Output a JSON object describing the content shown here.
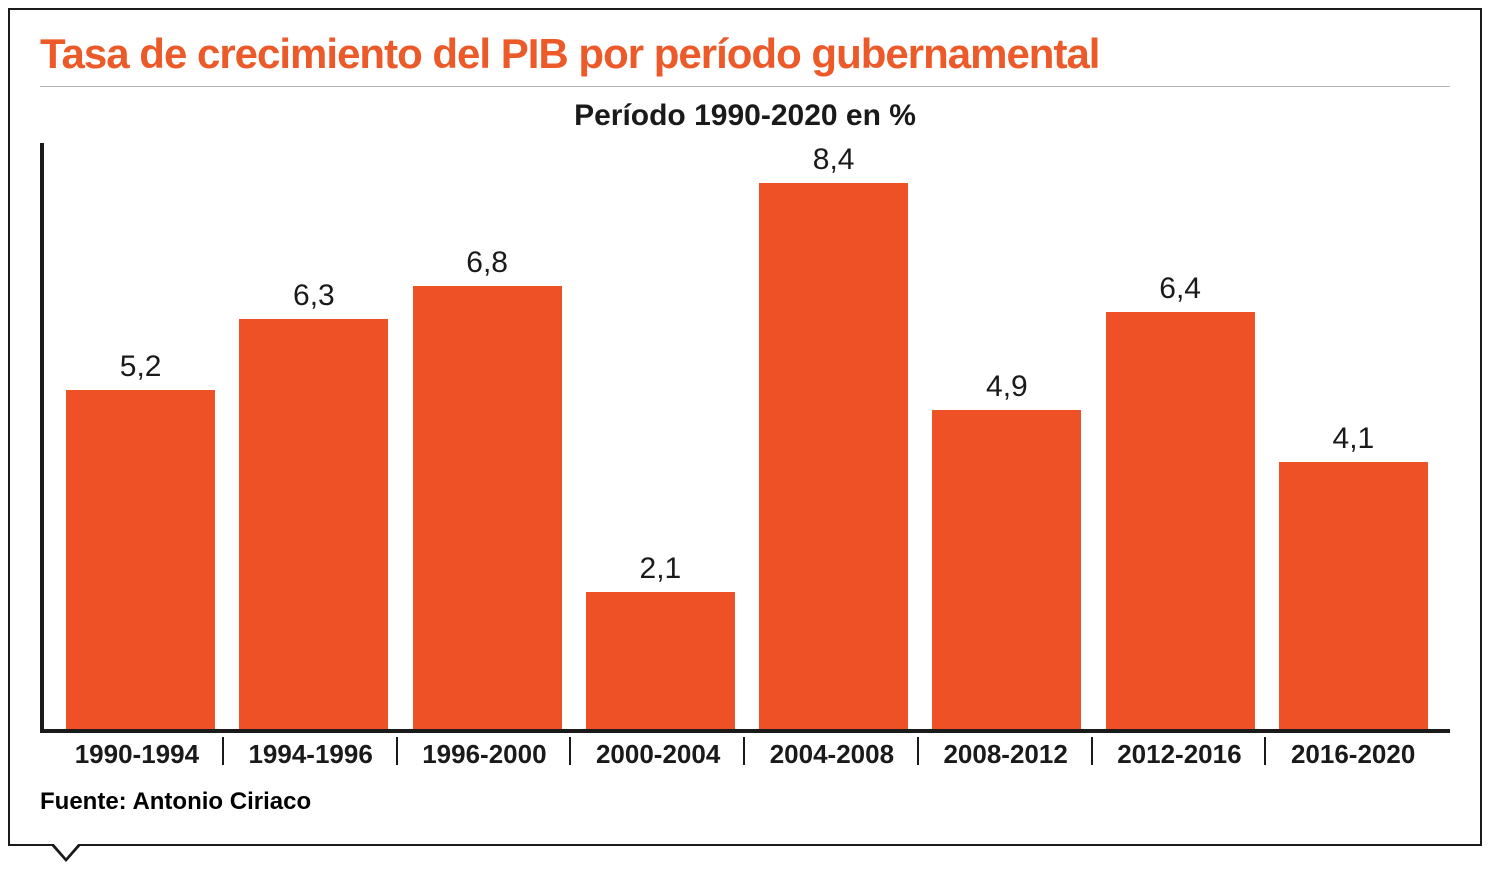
{
  "chart": {
    "type": "bar",
    "title": "Tasa de crecimiento del PIB por período gubernamental",
    "title_color": "#ed5a2a",
    "title_fontsize": 42,
    "subtitle": "Período 1990-2020 en %",
    "subtitle_color": "#1a1a1a",
    "subtitle_fontsize": 30,
    "categories": [
      "1990-1994",
      "1994-1996",
      "1996-2000",
      "2000-2004",
      "2004-2008",
      "2008-2012",
      "2012-2016",
      "2016-2020"
    ],
    "values": [
      5.2,
      6.3,
      6.8,
      2.1,
      8.4,
      4.9,
      6.4,
      4.1
    ],
    "value_labels": [
      "5,2",
      "6,3",
      "6,8",
      "2,1",
      "8,4",
      "4,9",
      "6,4",
      "4,1"
    ],
    "bar_color": "#ee5126",
    "value_label_color": "#1a1a1a",
    "value_label_fontsize": 30,
    "x_label_color": "#1a1a1a",
    "x_label_fontsize": 26,
    "axis_color": "#1a1a1a",
    "border_color": "#1a1a1a",
    "background_color": "#ffffff",
    "title_underline_color": "#b5b5b5",
    "ylim_max": 9.0,
    "bar_width_pct": 86,
    "source_label": "Fuente: Antonio Ciriaco",
    "source_color": "#1a1a1a",
    "source_fontsize": 24
  }
}
